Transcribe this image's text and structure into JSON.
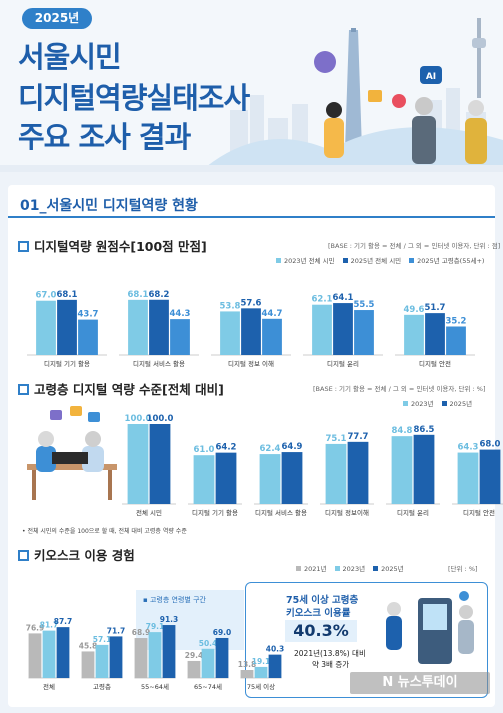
{
  "header": {
    "year_badge": "2025년",
    "title_lines": [
      "서울시민",
      "디지털역량실태조사",
      "주요 조사 결과"
    ],
    "sign_text": "AI"
  },
  "section": {
    "heading": "01_서울시민 디지털역량 현황"
  },
  "watermark": "N 뉴스투데이",
  "colors": {
    "c2023": "#7fcbe6",
    "c2025": "#1d61ad",
    "c2025_senior": "#3d8fd6",
    "c2021": "#b9b9b9",
    "accent": "#2f7fc8"
  },
  "chart_data": [
    {
      "type": "bar",
      "title": "디지털역량 원점수[100점 만점]",
      "base_note": "[BASE : 기기 활용 = 전체 / 그 외 = 인터넷 이용자, 단위 : 점]",
      "categories": [
        "디지털 기기 활용",
        "디지털 서비스 활용",
        "디지털 정보 이해",
        "디지털 윤리",
        "디지털 안전"
      ],
      "series": [
        {
          "name": "2023년 전체 시민",
          "values": [
            67.0,
            68.1,
            53.8,
            62.1,
            49.6
          ]
        },
        {
          "name": "2025년 전체 시민",
          "values": [
            68.1,
            68.2,
            57.6,
            64.1,
            51.7
          ]
        },
        {
          "name": "2025년 고령층(55세+)",
          "values": [
            43.7,
            44.3,
            44.7,
            55.5,
            35.2
          ]
        }
      ],
      "ylim": [
        0,
        100
      ]
    },
    {
      "type": "bar",
      "title": "고령층 디지털 역량 수준[전체 대비]",
      "base_note": "[BASE : 기기 활용 = 전체 / 그 외 = 인터넷 이용자, 단위 : %]",
      "categories": [
        "전체 시민",
        "디지털 기기 활용",
        "디지털 서비스 활용",
        "디지털 정보이해",
        "디지털 윤리",
        "디지털 안전"
      ],
      "series": [
        {
          "name": "2023년",
          "values": [
            100.0,
            61.0,
            62.4,
            75.1,
            84.8,
            64.3
          ]
        },
        {
          "name": "2025년",
          "values": [
            100.0,
            64.2,
            64.9,
            77.7,
            86.5,
            68.0
          ]
        }
      ],
      "ylim": [
        0,
        100
      ],
      "footnote": "• 전체 시민의 수준을 100으로 할 때, 전체 대비 고령층 역량 수준"
    },
    {
      "type": "bar",
      "title": "키오스크 이용 경험",
      "base_note": "[단위 : %]",
      "categories": [
        "전체",
        "고령층",
        "55~64세",
        "65~74세",
        "75세 이상"
      ],
      "series": [
        {
          "name": "2021년",
          "values": [
            76.9,
            45.8,
            68.9,
            29.4,
            13.8
          ]
        },
        {
          "name": "2023년",
          "values": [
            81.7,
            57.1,
            79.1,
            50.4,
            19.1
          ]
        },
        {
          "name": "2025년",
          "values": [
            87.7,
            71.7,
            91.3,
            69.0,
            40.3
          ]
        }
      ],
      "ylim": [
        0,
        100
      ],
      "subgroup_label": "고령층 연령별 구간",
      "highlight": {
        "line1": "75세 이상 고령층",
        "line2": "키오스크 이용률",
        "value": "40.3%",
        "detail1": "2021년(13.8%) 대비",
        "detail2": "약 3배 증가"
      }
    }
  ]
}
